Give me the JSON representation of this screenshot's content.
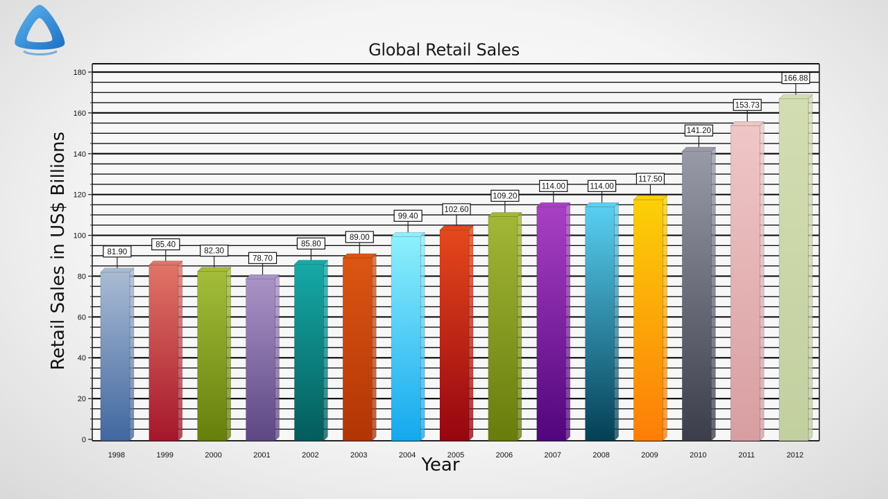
{
  "colors": {
    "grid": "#111111",
    "bars": [
      [
        "#a9bbd3",
        "#41679f"
      ],
      [
        "#e07468",
        "#a5172b"
      ],
      [
        "#a3bd3a",
        "#667f0c"
      ],
      [
        "#a993c6",
        "#5d4784"
      ],
      [
        "#16a9a6",
        "#045c5b"
      ],
      [
        "#dc5513",
        "#b23405"
      ],
      [
        "#8ef0fc",
        "#13a8ee"
      ],
      [
        "#e5481c",
        "#960510"
      ],
      [
        "#a2b737",
        "#677c0c"
      ],
      [
        "#a940c4",
        "#51057d"
      ],
      [
        "#59cff2",
        "#043f55"
      ],
      [
        "#fbd008",
        "#fd7d07"
      ],
      [
        "#989ba7",
        "#3b3e4a"
      ],
      [
        "#efc6c6",
        "#d89ea1"
      ],
      [
        "#d3ddb2",
        "#c2cf9f"
      ]
    ]
  },
  "chart_data": {
    "type": "bar",
    "title": "Global Retail Sales",
    "xlabel": "Year",
    "ylabel": "Retail Sales in US$ Billions",
    "categories": [
      "1998",
      "1999",
      "2000",
      "2001",
      "2002",
      "2003",
      "2004",
      "2005",
      "2006",
      "2007",
      "2008",
      "2009",
      "2010",
      "2011",
      "2012"
    ],
    "values": [
      81.9,
      85.4,
      82.3,
      78.7,
      85.8,
      89.0,
      99.4,
      102.6,
      109.2,
      114.0,
      114.0,
      117.5,
      141.2,
      153.73,
      166.88
    ],
    "value_labels": [
      "81.90",
      "85.40",
      "82.30",
      "78.70",
      "85.80",
      "89.00",
      "99.40",
      "102.60",
      "109.20",
      "114.00",
      "114.00",
      "117.50",
      "141.20",
      "153.73",
      "166.88"
    ],
    "ytick_labels": [
      "0",
      "20",
      "40",
      "60",
      "80",
      "100",
      "120",
      "140",
      "160",
      "180"
    ],
    "ylim": [
      0,
      180
    ],
    "grid": true,
    "legend": "none"
  }
}
